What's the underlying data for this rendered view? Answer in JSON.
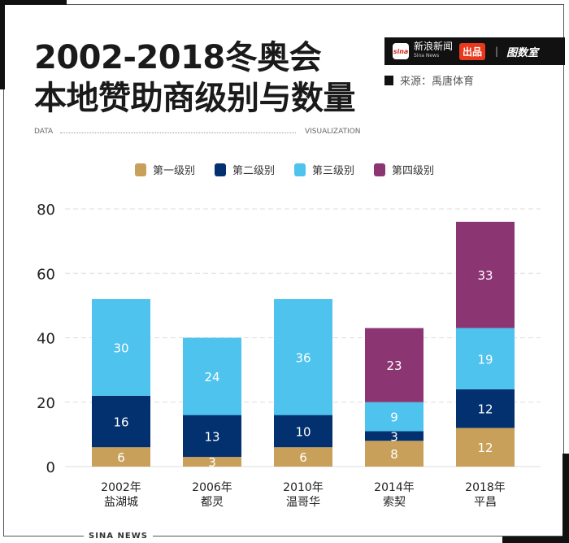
{
  "header": {
    "title_line1": "2002-2018冬奥会",
    "title_line2": "本地赞助商级别与数量",
    "brand_logo": "sina",
    "brand_name": "新浪新闻",
    "brand_sub": "Sina News",
    "brand_tag": "出品",
    "brand_partner": "图数室",
    "source": "来源：禹唐体育",
    "data_label": "DATA",
    "visualization_label": "VISUALIZATION"
  },
  "footer": {
    "label": "SINA NEWS"
  },
  "chart_data": {
    "type": "bar",
    "stacked": true,
    "categories": [
      "2002年\n盐湖城",
      "2006年\n都灵",
      "2010年\n温哥华",
      "2014年\n索契",
      "2018年\n平昌"
    ],
    "category_lines": [
      [
        "2002年",
        "盐湖城"
      ],
      [
        "2006年",
        "都灵"
      ],
      [
        "2010年",
        "温哥华"
      ],
      [
        "2014年",
        "索契"
      ],
      [
        "2018年",
        "平昌"
      ]
    ],
    "series": [
      {
        "name": "第一级别",
        "color": "#c9a05a",
        "values": [
          6,
          3,
          6,
          8,
          12
        ]
      },
      {
        "name": "第二级别",
        "color": "#03306f",
        "values": [
          16,
          13,
          10,
          3,
          12
        ]
      },
      {
        "name": "第三级别",
        "color": "#4ec3ee",
        "values": [
          30,
          24,
          36,
          9,
          19
        ]
      },
      {
        "name": "第四级别",
        "color": "#8b3672",
        "values": [
          0,
          0,
          0,
          23,
          33
        ]
      }
    ],
    "ylim": [
      0,
      80
    ],
    "yticks": [
      0,
      20,
      40,
      60,
      80
    ],
    "grid": true,
    "legend": "top"
  }
}
